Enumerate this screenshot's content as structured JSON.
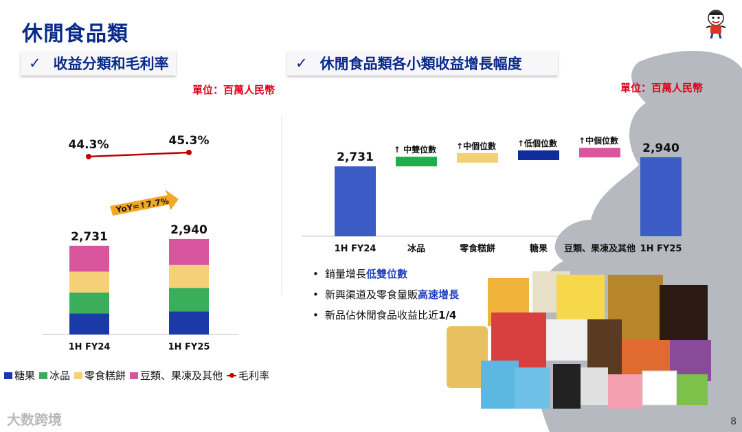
{
  "page_title": "休閒食品類",
  "section_left_title": "收益分類和毛利率",
  "section_right_title": "休閒食品類各小類收益增長幅度",
  "check_mark": "✓",
  "unit_left": "單位：百萬人民幣",
  "unit_right": "單位：百萬人民幣",
  "yoy_label": "YoY=↑7.7%",
  "bullets": [
    {
      "pre": "銷量增長",
      "emph": "低雙位數",
      "post": ""
    },
    {
      "pre": "新興渠道及零食量販",
      "emph": "高速增長",
      "post": ""
    },
    {
      "pre": "新品佔休閒食品收益比近",
      "emph": "1/4",
      "post": ""
    }
  ],
  "legend": [
    {
      "label": "糖果",
      "color": "#1a3aa8"
    },
    {
      "label": "冰品",
      "color": "#3aae5a"
    },
    {
      "label": "零食糕餅",
      "color": "#f5d078"
    },
    {
      "label": "豆類、果凍及其他",
      "color": "#d9559e"
    },
    {
      "label": "毛利率",
      "color": "#c00000"
    }
  ],
  "watermark": "大数跨境",
  "page_number": "8",
  "chart_data": [
    {
      "type": "bar",
      "stacked": true,
      "categories": [
        "1H FY24",
        "1H FY25"
      ],
      "totals": [
        2731,
        2940
      ],
      "total_labels": [
        "2,731",
        "2,940"
      ],
      "series": [
        {
          "name": "糖果",
          "values": [
            650,
            710
          ]
        },
        {
          "name": "冰品",
          "values": [
            640,
            725
          ]
        },
        {
          "name": "零食糕餅",
          "values": [
            645,
            705
          ]
        },
        {
          "name": "豆類、果凍及其他",
          "values": [
            796,
            800
          ]
        }
      ],
      "line": {
        "name": "毛利率",
        "values": [
          44.3,
          45.3
        ],
        "labels": [
          "44.3%",
          "45.3%"
        ]
      }
    },
    {
      "type": "waterfall",
      "categories": [
        "1H FY24",
        "冰品",
        "零食糕餅",
        "糖果",
        "豆類、果凍及其他",
        "1H FY25"
      ],
      "start": 2731,
      "end": 2940,
      "start_label": "2,731",
      "end_label": "2,940",
      "increments": [
        85,
        60,
        60,
        4
      ],
      "annotations": [
        "↑ 中雙位數",
        "↑中個位數",
        "↑低個位數",
        "↑中個位數"
      ],
      "colors": [
        "#3a5cc4",
        "#1fae4b",
        "#f5d078",
        "#0f2c9c",
        "#d9559e",
        "#3a5cc4"
      ]
    }
  ]
}
